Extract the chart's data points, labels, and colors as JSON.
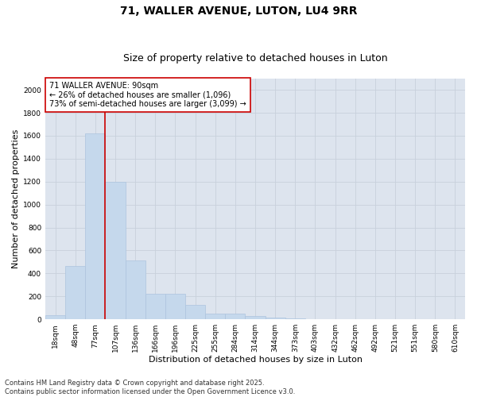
{
  "title": "71, WALLER AVENUE, LUTON, LU4 9RR",
  "subtitle": "Size of property relative to detached houses in Luton",
  "xlabel": "Distribution of detached houses by size in Luton",
  "ylabel": "Number of detached properties",
  "categories": [
    "18sqm",
    "48sqm",
    "77sqm",
    "107sqm",
    "136sqm",
    "166sqm",
    "196sqm",
    "225sqm",
    "255sqm",
    "284sqm",
    "314sqm",
    "344sqm",
    "373sqm",
    "403sqm",
    "432sqm",
    "462sqm",
    "492sqm",
    "521sqm",
    "551sqm",
    "580sqm",
    "610sqm"
  ],
  "values": [
    35,
    465,
    1620,
    1200,
    515,
    220,
    220,
    125,
    50,
    50,
    30,
    15,
    10,
    0,
    0,
    0,
    0,
    0,
    0,
    0,
    0
  ],
  "bar_color": "#c5d8ec",
  "bar_edge_color": "#adc4de",
  "vline_x_index": 2,
  "vline_color": "#cc0000",
  "annotation_text": "71 WALLER AVENUE: 90sqm\n← 26% of detached houses are smaller (1,096)\n73% of semi-detached houses are larger (3,099) →",
  "annotation_box_facecolor": "#ffffff",
  "annotation_box_edgecolor": "#cc0000",
  "ylim": [
    0,
    2100
  ],
  "yticks": [
    0,
    200,
    400,
    600,
    800,
    1000,
    1200,
    1400,
    1600,
    1800,
    2000
  ],
  "grid_color": "#c8d0dc",
  "bg_color": "#dde4ee",
  "footer_text": "Contains HM Land Registry data © Crown copyright and database right 2025.\nContains public sector information licensed under the Open Government Licence v3.0.",
  "title_fontsize": 10,
  "subtitle_fontsize": 9,
  "axis_label_fontsize": 8,
  "tick_fontsize": 6.5,
  "annotation_fontsize": 7,
  "footer_fontsize": 6
}
